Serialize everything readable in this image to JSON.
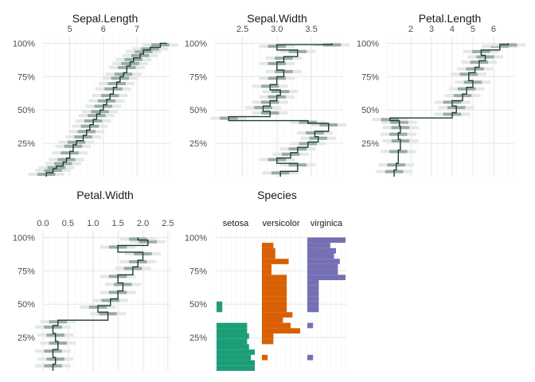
{
  "figure": {
    "background": "#ffffff"
  },
  "chart_data": [
    {
      "type": "line",
      "title": "Sepal.Length",
      "xticks": [
        "5",
        "6",
        "7"
      ],
      "xtick_values": [
        5,
        6,
        7
      ],
      "xlim": [
        4.2,
        8.0
      ],
      "yticks": [
        "100%",
        "75%",
        "50%",
        "25%"
      ],
      "ytick_values": [
        1.0,
        0.75,
        0.5,
        0.25
      ],
      "ylim": [
        0,
        1.05
      ],
      "series": [
        {
          "kind": "median_path",
          "color": "#1c3d3d",
          "points": [
            [
              4.3,
              0.0
            ],
            [
              4.3,
              0.03
            ],
            [
              4.5,
              0.03
            ],
            [
              4.5,
              0.06
            ],
            [
              4.6,
              0.06
            ],
            [
              4.6,
              0.08
            ],
            [
              4.8,
              0.08
            ],
            [
              4.8,
              0.11
            ],
            [
              4.9,
              0.11
            ],
            [
              4.9,
              0.14
            ],
            [
              5.0,
              0.14
            ],
            [
              5.0,
              0.19
            ],
            [
              5.1,
              0.19
            ],
            [
              5.1,
              0.24
            ],
            [
              5.2,
              0.24
            ],
            [
              5.2,
              0.27
            ],
            [
              5.4,
              0.27
            ],
            [
              5.4,
              0.31
            ],
            [
              5.5,
              0.31
            ],
            [
              5.5,
              0.35
            ],
            [
              5.6,
              0.35
            ],
            [
              5.6,
              0.39
            ],
            [
              5.7,
              0.39
            ],
            [
              5.7,
              0.43
            ],
            [
              5.8,
              0.43
            ],
            [
              5.8,
              0.47
            ],
            [
              5.9,
              0.47
            ],
            [
              5.9,
              0.5
            ],
            [
              6.0,
              0.5
            ],
            [
              6.0,
              0.54
            ],
            [
              6.1,
              0.54
            ],
            [
              6.1,
              0.58
            ],
            [
              6.2,
              0.58
            ],
            [
              6.2,
              0.62
            ],
            [
              6.3,
              0.62
            ],
            [
              6.3,
              0.67
            ],
            [
              6.4,
              0.67
            ],
            [
              6.4,
              0.71
            ],
            [
              6.5,
              0.71
            ],
            [
              6.5,
              0.75
            ],
            [
              6.6,
              0.75
            ],
            [
              6.6,
              0.78
            ],
            [
              6.7,
              0.78
            ],
            [
              6.7,
              0.83
            ],
            [
              6.8,
              0.83
            ],
            [
              6.8,
              0.86
            ],
            [
              6.9,
              0.86
            ],
            [
              6.9,
              0.89
            ],
            [
              7.1,
              0.89
            ],
            [
              7.1,
              0.92
            ],
            [
              7.2,
              0.92
            ],
            [
              7.2,
              0.95
            ],
            [
              7.4,
              0.95
            ],
            [
              7.4,
              0.97
            ],
            [
              7.7,
              0.97
            ],
            [
              7.7,
              1.0
            ],
            [
              7.9,
              1.0
            ]
          ]
        }
      ]
    },
    {
      "type": "line",
      "title": "Sepal.Width",
      "xticks": [
        "2.5",
        "3.0",
        "3.5"
      ],
      "xtick_values": [
        2.5,
        3.0,
        3.5
      ],
      "xlim": [
        2.1,
        3.95
      ],
      "yticks": [
        "100%",
        "75%",
        "50%",
        "25%"
      ],
      "ytick_values": [
        1.0,
        0.75,
        0.5,
        0.25
      ],
      "ylim": [
        0,
        1.05
      ],
      "series": [
        {
          "kind": "median_path",
          "color": "#1c3d3d",
          "points": [
            [
              3.05,
              0.0
            ],
            [
              3.05,
              0.04
            ],
            [
              3.3,
              0.04
            ],
            [
              3.3,
              0.1
            ],
            [
              3.0,
              0.1
            ],
            [
              3.0,
              0.14
            ],
            [
              3.2,
              0.14
            ],
            [
              3.2,
              0.18
            ],
            [
              3.3,
              0.18
            ],
            [
              3.3,
              0.22
            ],
            [
              3.45,
              0.22
            ],
            [
              3.45,
              0.26
            ],
            [
              3.6,
              0.26
            ],
            [
              3.6,
              0.3
            ],
            [
              3.55,
              0.3
            ],
            [
              3.55,
              0.34
            ],
            [
              3.75,
              0.34
            ],
            [
              3.75,
              0.4
            ],
            [
              3.45,
              0.4
            ],
            [
              3.45,
              0.42
            ],
            [
              2.3,
              0.42
            ],
            [
              2.3,
              0.45
            ],
            [
              2.9,
              0.45
            ],
            [
              2.9,
              0.49
            ],
            [
              2.8,
              0.49
            ],
            [
              2.8,
              0.53
            ],
            [
              2.9,
              0.53
            ],
            [
              2.9,
              0.57
            ],
            [
              3.0,
              0.57
            ],
            [
              3.0,
              0.61
            ],
            [
              3.05,
              0.61
            ],
            [
              3.05,
              0.65
            ],
            [
              2.9,
              0.65
            ],
            [
              2.9,
              0.69
            ],
            [
              3.0,
              0.69
            ],
            [
              3.0,
              0.75
            ],
            [
              3.1,
              0.75
            ],
            [
              3.1,
              0.8
            ],
            [
              3.0,
              0.8
            ],
            [
              3.0,
              0.86
            ],
            [
              3.1,
              0.86
            ],
            [
              3.1,
              0.9
            ],
            [
              3.3,
              0.9
            ],
            [
              3.3,
              0.95
            ],
            [
              3.0,
              0.95
            ],
            [
              3.0,
              0.99
            ],
            [
              3.8,
              0.99
            ],
            [
              3.8,
              1.0
            ]
          ]
        }
      ]
    },
    {
      "type": "line",
      "title": "Petal.Length",
      "xticks": [
        "2",
        "3",
        "4",
        "5",
        "6"
      ],
      "xtick_values": [
        2,
        3,
        4,
        5,
        6
      ],
      "xlim": [
        0.85,
        7.0
      ],
      "yticks": [
        "100%",
        "75%",
        "50%",
        "25%"
      ],
      "ytick_values": [
        1.0,
        0.75,
        0.5,
        0.25
      ],
      "ylim": [
        0,
        1.05
      ],
      "series": [
        {
          "kind": "median_path",
          "color": "#1c3d3d",
          "points": [
            [
              1.2,
              0.0
            ],
            [
              1.2,
              0.05
            ],
            [
              1.3,
              0.05
            ],
            [
              1.3,
              0.1
            ],
            [
              1.4,
              0.1
            ],
            [
              1.4,
              0.2
            ],
            [
              1.5,
              0.2
            ],
            [
              1.5,
              0.28
            ],
            [
              1.4,
              0.28
            ],
            [
              1.4,
              0.33
            ],
            [
              1.5,
              0.33
            ],
            [
              1.5,
              0.38
            ],
            [
              1.45,
              0.38
            ],
            [
              1.45,
              0.42
            ],
            [
              1.0,
              0.42
            ],
            [
              1.0,
              0.44
            ],
            [
              4.0,
              0.44
            ],
            [
              4.0,
              0.48
            ],
            [
              4.2,
              0.48
            ],
            [
              4.2,
              0.53
            ],
            [
              4.0,
              0.53
            ],
            [
              4.0,
              0.57
            ],
            [
              4.5,
              0.57
            ],
            [
              4.5,
              0.62
            ],
            [
              4.7,
              0.62
            ],
            [
              4.7,
              0.67
            ],
            [
              5.0,
              0.67
            ],
            [
              5.0,
              0.72
            ],
            [
              4.8,
              0.72
            ],
            [
              4.8,
              0.78
            ],
            [
              5.1,
              0.78
            ],
            [
              5.1,
              0.82
            ],
            [
              5.3,
              0.82
            ],
            [
              5.3,
              0.87
            ],
            [
              5.6,
              0.87
            ],
            [
              5.6,
              0.91
            ],
            [
              5.4,
              0.91
            ],
            [
              5.4,
              0.95
            ],
            [
              6.3,
              0.95
            ],
            [
              6.3,
              0.99
            ],
            [
              6.7,
              0.99
            ],
            [
              6.7,
              1.0
            ]
          ]
        }
      ]
    },
    {
      "type": "line",
      "title": "Petal.Width",
      "xticks": [
        "0.0",
        "0.5",
        "1.0",
        "1.5",
        "2.0",
        "2.5"
      ],
      "xtick_values": [
        0.0,
        0.5,
        1.0,
        1.5,
        2.0,
        2.5
      ],
      "xlim": [
        0.0,
        2.55
      ],
      "yticks": [
        "100%",
        "75%",
        "50%",
        "25%"
      ],
      "ytick_values": [
        1.0,
        0.75,
        0.5,
        0.25
      ],
      "ylim": [
        0,
        1.05
      ],
      "series": [
        {
          "kind": "median_path",
          "color": "#1c3d3d",
          "points": [
            [
              0.2,
              0.0
            ],
            [
              0.2,
              0.05
            ],
            [
              0.25,
              0.05
            ],
            [
              0.25,
              0.1
            ],
            [
              0.2,
              0.1
            ],
            [
              0.2,
              0.16
            ],
            [
              0.3,
              0.16
            ],
            [
              0.3,
              0.22
            ],
            [
              0.25,
              0.22
            ],
            [
              0.25,
              0.28
            ],
            [
              0.2,
              0.28
            ],
            [
              0.2,
              0.34
            ],
            [
              0.3,
              0.34
            ],
            [
              0.3,
              0.38
            ],
            [
              1.3,
              0.38
            ],
            [
              1.3,
              0.44
            ],
            [
              1.1,
              0.44
            ],
            [
              1.1,
              0.49
            ],
            [
              1.35,
              0.49
            ],
            [
              1.35,
              0.54
            ],
            [
              1.5,
              0.54
            ],
            [
              1.5,
              0.6
            ],
            [
              1.6,
              0.6
            ],
            [
              1.6,
              0.66
            ],
            [
              1.5,
              0.66
            ],
            [
              1.5,
              0.72
            ],
            [
              1.8,
              0.72
            ],
            [
              1.8,
              0.78
            ],
            [
              1.9,
              0.78
            ],
            [
              1.9,
              0.83
            ],
            [
              2.0,
              0.83
            ],
            [
              2.0,
              0.89
            ],
            [
              1.5,
              0.89
            ],
            [
              1.5,
              0.94
            ],
            [
              2.1,
              0.94
            ],
            [
              2.1,
              0.98
            ],
            [
              1.9,
              0.98
            ],
            [
              1.9,
              1.0
            ]
          ]
        }
      ]
    },
    {
      "type": "bar",
      "title": "Species",
      "facets": [
        "setosa",
        "versicolor",
        "virginica"
      ],
      "yticks": [
        "100%",
        "75%",
        "50%",
        "25%"
      ],
      "ytick_values": [
        1.0,
        0.75,
        0.5,
        0.25
      ],
      "ylim": [
        0,
        1.05
      ],
      "orientation": "horizontal",
      "band_height": 0.04,
      "series": [
        {
          "name": "setosa",
          "color": "#1b9e77",
          "bands": [
            [
              0.02,
              1.0
            ],
            [
              0.06,
              1.0
            ],
            [
              0.1,
              0.9
            ],
            [
              0.14,
              1.0
            ],
            [
              0.18,
              0.85
            ],
            [
              0.22,
              0.8
            ],
            [
              0.26,
              0.85
            ],
            [
              0.3,
              0.8
            ],
            [
              0.34,
              0.8
            ],
            [
              0.46,
              0.15
            ],
            [
              0.5,
              0.15
            ]
          ]
        },
        {
          "name": "versicolor",
          "color": "#d95f02",
          "bands": [
            [
              0.1,
              0.15
            ],
            [
              0.22,
              0.3
            ],
            [
              0.26,
              0.3
            ],
            [
              0.3,
              1.0
            ],
            [
              0.34,
              0.75
            ],
            [
              0.38,
              0.55
            ],
            [
              0.42,
              0.8
            ],
            [
              0.46,
              0.65
            ],
            [
              0.5,
              0.65
            ],
            [
              0.54,
              0.65
            ],
            [
              0.58,
              0.65
            ],
            [
              0.62,
              0.65
            ],
            [
              0.66,
              0.65
            ],
            [
              0.7,
              0.65
            ],
            [
              0.74,
              0.25
            ],
            [
              0.78,
              0.25
            ],
            [
              0.82,
              0.7
            ],
            [
              0.86,
              0.35
            ],
            [
              0.9,
              0.35
            ],
            [
              0.94,
              0.3
            ]
          ]
        },
        {
          "name": "virginica",
          "color": "#7570b3",
          "bands": [
            [
              0.1,
              0.15
            ],
            [
              0.34,
              0.15
            ],
            [
              0.46,
              0.3
            ],
            [
              0.5,
              0.3
            ],
            [
              0.54,
              0.3
            ],
            [
              0.58,
              0.3
            ],
            [
              0.62,
              0.3
            ],
            [
              0.66,
              0.3
            ],
            [
              0.7,
              1.0
            ],
            [
              0.74,
              0.8
            ],
            [
              0.78,
              0.8
            ],
            [
              0.82,
              0.85
            ],
            [
              0.86,
              0.7
            ],
            [
              0.9,
              0.75
            ],
            [
              0.94,
              0.6
            ],
            [
              0.98,
              1.0
            ]
          ]
        }
      ]
    }
  ]
}
